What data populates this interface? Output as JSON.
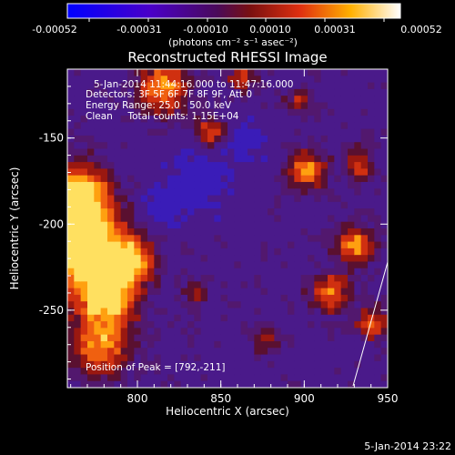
{
  "colorbar": {
    "ticks": [
      "-0.00052",
      "-0.00031",
      "-0.00010",
      "0.00010",
      "0.00031",
      "0.00052"
    ],
    "units_label": "(photons cm⁻² s⁻¹ asec⁻²)"
  },
  "chart_data": {
    "type": "heatmap",
    "title": "Reconstructed RHESSI Image",
    "xlabel": "Heliocentric X (arcsec)",
    "ylabel": "Heliocentric Y (arcsec)",
    "xlim": [
      758,
      950
    ],
    "ylim": [
      -295,
      -110
    ],
    "xticks": [
      "800",
      "850",
      "900",
      "950"
    ],
    "yticks": [
      "-150",
      "-200",
      "-250"
    ],
    "colorbar_range": [
      -0.00052,
      0.00052
    ],
    "colormap": "blue-purple-red-yellow-white",
    "annotations": [
      "5-Jan-2014 11:44:16.000 to 11:47:16.000",
      "Detectors: 3F 5F 6F 7F 8F 9F, Att 0",
      "Energy Range: 25.0 - 50.0 keV",
      "Clean     Total counts: 1.15E+04",
      "Position of Peak = [792,-211]"
    ],
    "peak": [
      792,
      -211
    ]
  },
  "footer": {
    "timestamp": "5-Jan-2014 23:22"
  }
}
